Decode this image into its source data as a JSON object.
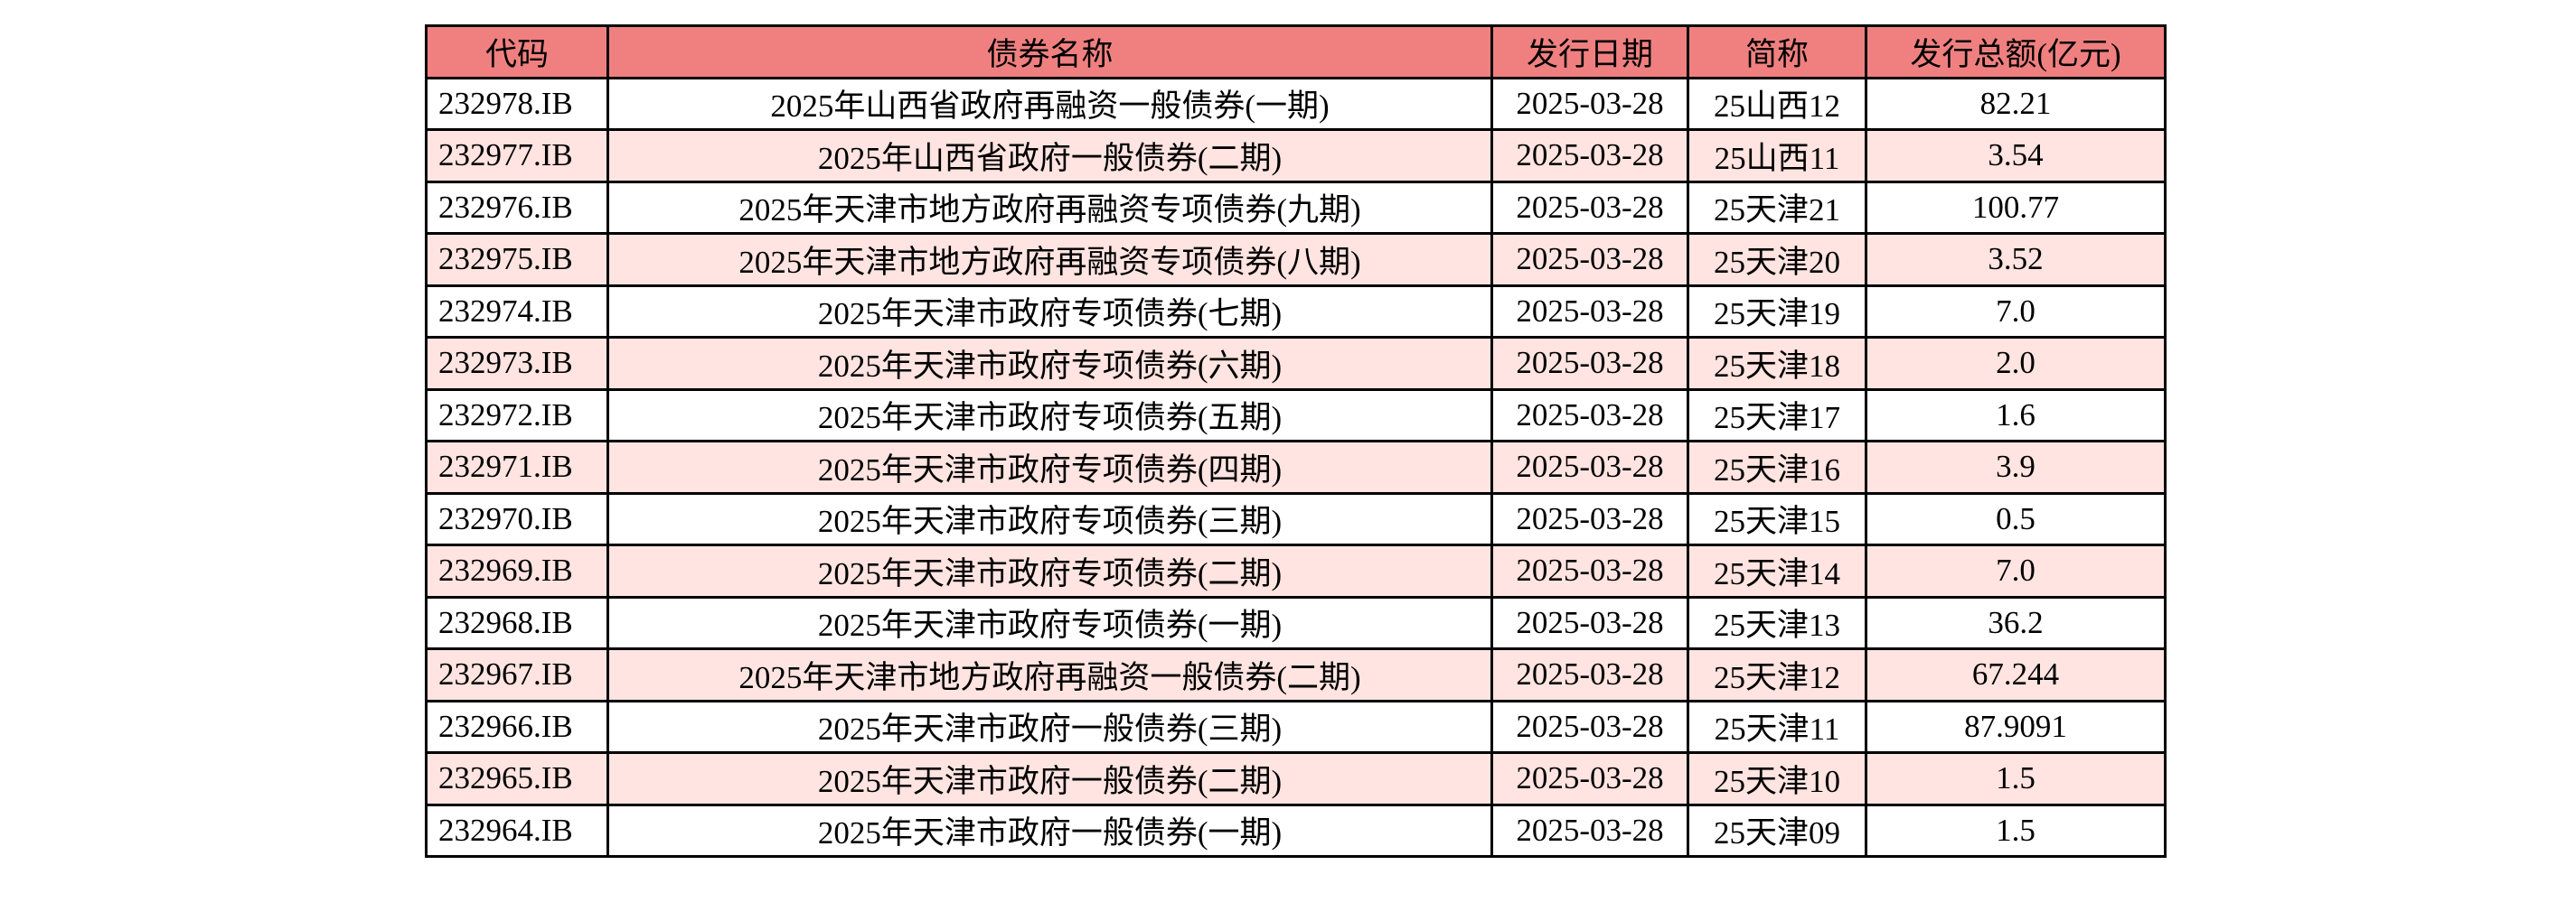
{
  "colors": {
    "header_bg": "#f08080",
    "alt_row_bg": "#ffe4e1",
    "row_bg": "#ffffff",
    "border": "#000000"
  },
  "table": {
    "headers": [
      "代码",
      "债券名称",
      "发行日期",
      "简称",
      "发行总额(亿元)"
    ],
    "rows": [
      [
        "232978.IB",
        "2025年山西省政府再融资一般债券(一期)",
        "2025-03-28",
        "25山西12",
        "82.21"
      ],
      [
        "232977.IB",
        "2025年山西省政府一般债券(二期)",
        "2025-03-28",
        "25山西11",
        "3.54"
      ],
      [
        "232976.IB",
        "2025年天津市地方政府再融资专项债券(九期)",
        "2025-03-28",
        "25天津21",
        "100.77"
      ],
      [
        "232975.IB",
        "2025年天津市地方政府再融资专项债券(八期)",
        "2025-03-28",
        "25天津20",
        "3.52"
      ],
      [
        "232974.IB",
        "2025年天津市政府专项债券(七期)",
        "2025-03-28",
        "25天津19",
        "7.0"
      ],
      [
        "232973.IB",
        "2025年天津市政府专项债券(六期)",
        "2025-03-28",
        "25天津18",
        "2.0"
      ],
      [
        "232972.IB",
        "2025年天津市政府专项债券(五期)",
        "2025-03-28",
        "25天津17",
        "1.6"
      ],
      [
        "232971.IB",
        "2025年天津市政府专项债券(四期)",
        "2025-03-28",
        "25天津16",
        "3.9"
      ],
      [
        "232970.IB",
        "2025年天津市政府专项债券(三期)",
        "2025-03-28",
        "25天津15",
        "0.5"
      ],
      [
        "232969.IB",
        "2025年天津市政府专项债券(二期)",
        "2025-03-28",
        "25天津14",
        "7.0"
      ],
      [
        "232968.IB",
        "2025年天津市政府专项债券(一期)",
        "2025-03-28",
        "25天津13",
        "36.2"
      ],
      [
        "232967.IB",
        "2025年天津市地方政府再融资一般债券(二期)",
        "2025-03-28",
        "25天津12",
        "67.244"
      ],
      [
        "232966.IB",
        "2025年天津市政府一般债券(三期)",
        "2025-03-28",
        "25天津11",
        "87.9091"
      ],
      [
        "232965.IB",
        "2025年天津市政府一般债券(二期)",
        "2025-03-28",
        "25天津10",
        "1.5"
      ],
      [
        "232964.IB",
        "2025年天津市政府一般债券(一期)",
        "2025-03-28",
        "25天津09",
        "1.5"
      ]
    ]
  }
}
